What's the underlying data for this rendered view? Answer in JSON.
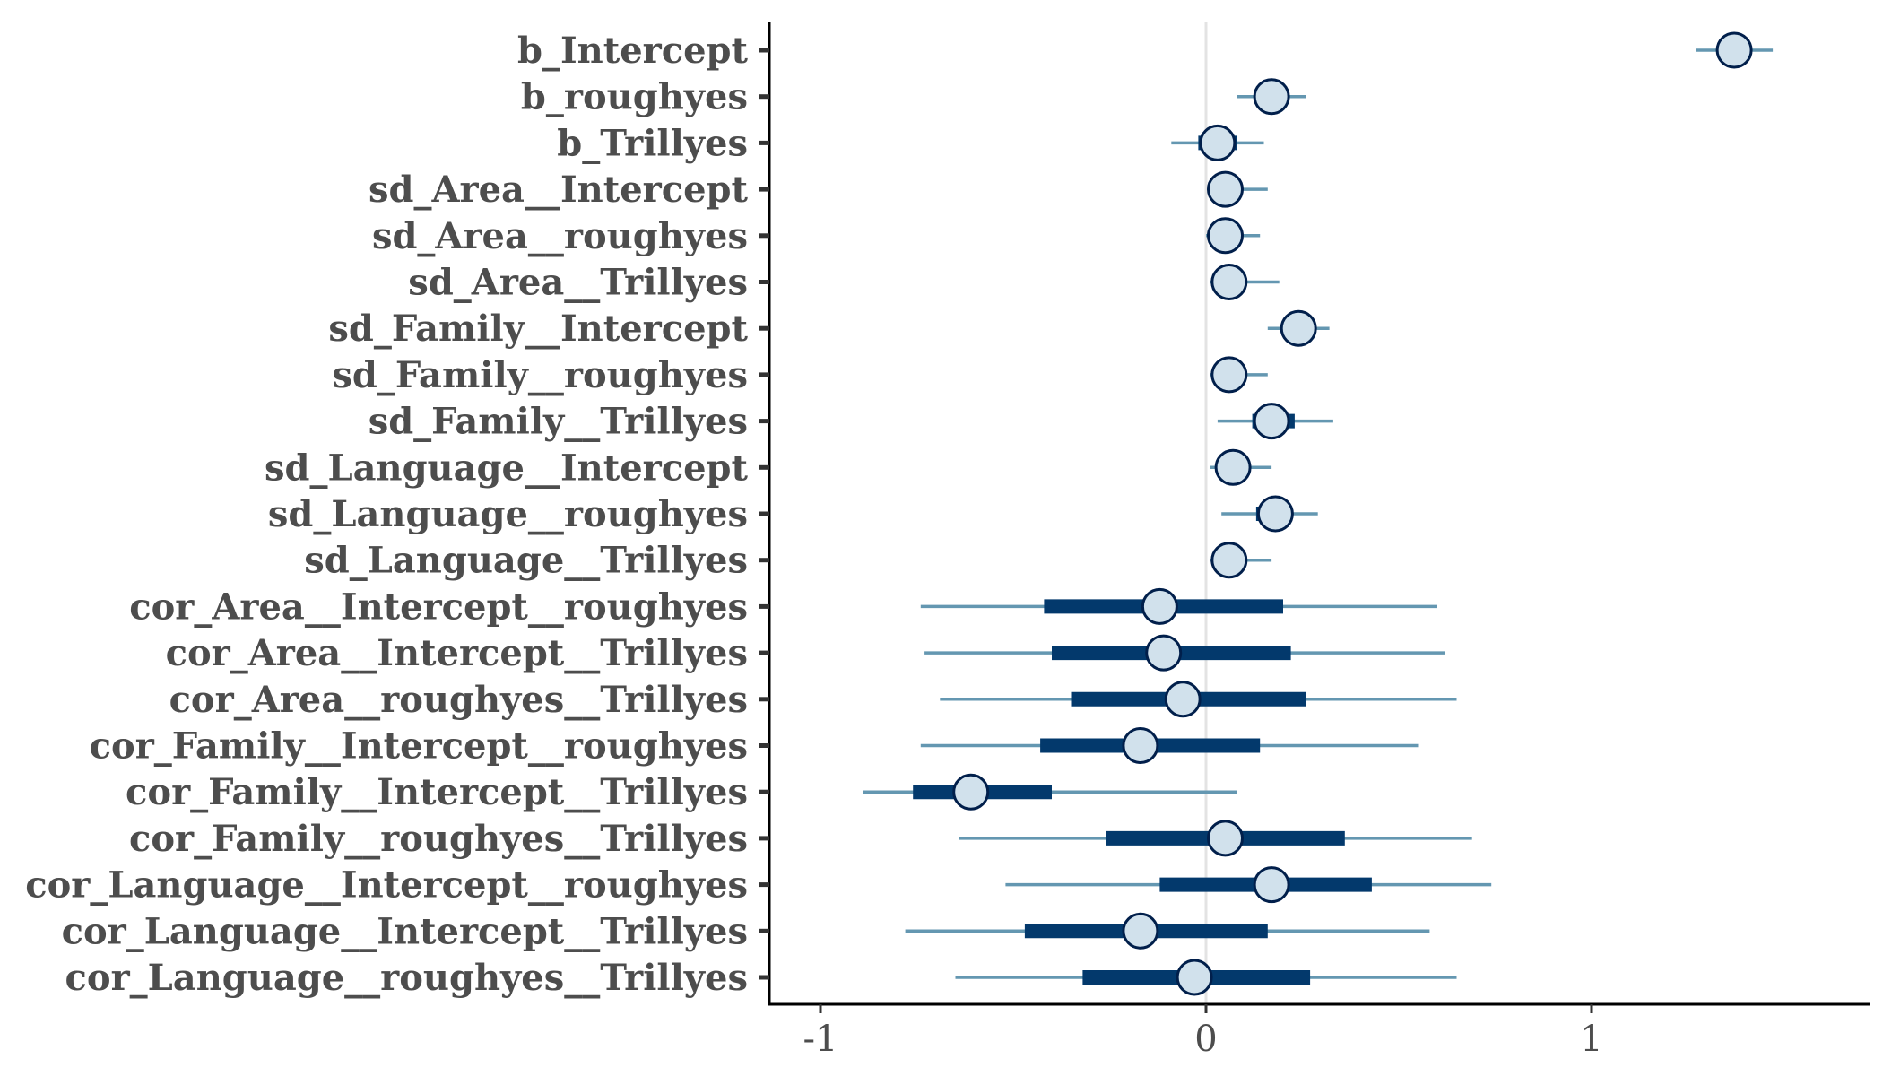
{
  "chart_data": {
    "type": "interval",
    "title": "",
    "xlabel": "",
    "ylabel": "",
    "xlim": [
      -1.14,
      1.72
    ],
    "x_ticks": [
      "-1",
      "0",
      "1"
    ],
    "x_tick_values": [
      -1,
      0,
      1
    ],
    "reference_line": 0,
    "grid": false,
    "legend": "none",
    "colors": {
      "outer_interval": "#6497b1",
      "inner_interval": "#03396c",
      "point_fill": "#d1e1ec",
      "point_stroke": "#011f4b",
      "zero_line": "#e3e3e3",
      "label_text": "#4d4d4d"
    },
    "parameters": [
      {
        "name": "b_Intercept",
        "estimate": 1.37,
        "inner": [
          1.33,
          1.4
        ],
        "outer": [
          1.27,
          1.47
        ]
      },
      {
        "name": "b_roughyes",
        "estimate": 0.17,
        "inner": [
          0.13,
          0.21
        ],
        "outer": [
          0.08,
          0.26
        ]
      },
      {
        "name": "b_Trillyes",
        "estimate": 0.03,
        "inner": [
          -0.02,
          0.08
        ],
        "outer": [
          -0.09,
          0.15
        ]
      },
      {
        "name": "sd_Area__Intercept",
        "estimate": 0.05,
        "inner": [
          0.03,
          0.08
        ],
        "outer": [
          0.01,
          0.16
        ]
      },
      {
        "name": "sd_Area__roughyes",
        "estimate": 0.05,
        "inner": [
          0.02,
          0.07
        ],
        "outer": [
          0.0,
          0.14
        ]
      },
      {
        "name": "sd_Area__Trillyes",
        "estimate": 0.06,
        "inner": [
          0.02,
          0.1
        ],
        "outer": [
          0.01,
          0.19
        ]
      },
      {
        "name": "sd_Family__Intercept",
        "estimate": 0.24,
        "inner": [
          0.2,
          0.28
        ],
        "outer": [
          0.16,
          0.32
        ]
      },
      {
        "name": "sd_Family__roughyes",
        "estimate": 0.06,
        "inner": [
          0.03,
          0.09
        ],
        "outer": [
          0.01,
          0.16
        ]
      },
      {
        "name": "sd_Family__Trillyes",
        "estimate": 0.17,
        "inner": [
          0.12,
          0.23
        ],
        "outer": [
          0.03,
          0.33
        ]
      },
      {
        "name": "sd_Language__Intercept",
        "estimate": 0.07,
        "inner": [
          0.04,
          0.11
        ],
        "outer": [
          0.01,
          0.17
        ]
      },
      {
        "name": "sd_Language__roughyes",
        "estimate": 0.18,
        "inner": [
          0.13,
          0.22
        ],
        "outer": [
          0.04,
          0.29
        ]
      },
      {
        "name": "sd_Language__Trillyes",
        "estimate": 0.06,
        "inner": [
          0.02,
          0.09
        ],
        "outer": [
          0.01,
          0.17
        ]
      },
      {
        "name": "cor_Area__Intercept__roughyes",
        "estimate": -0.12,
        "inner": [
          -0.42,
          0.2
        ],
        "outer": [
          -0.74,
          0.6
        ]
      },
      {
        "name": "cor_Area__Intercept__Trillyes",
        "estimate": -0.11,
        "inner": [
          -0.4,
          0.22
        ],
        "outer": [
          -0.73,
          0.62
        ]
      },
      {
        "name": "cor_Area__roughyes__Trillyes",
        "estimate": -0.06,
        "inner": [
          -0.35,
          0.26
        ],
        "outer": [
          -0.69,
          0.65
        ]
      },
      {
        "name": "cor_Family__Intercept__roughyes",
        "estimate": -0.17,
        "inner": [
          -0.43,
          0.14
        ],
        "outer": [
          -0.74,
          0.55
        ]
      },
      {
        "name": "cor_Family__Intercept__Trillyes",
        "estimate": -0.61,
        "inner": [
          -0.76,
          -0.4
        ],
        "outer": [
          -0.89,
          0.08
        ]
      },
      {
        "name": "cor_Family__roughyes__Trillyes",
        "estimate": 0.05,
        "inner": [
          -0.26,
          0.36
        ],
        "outer": [
          -0.64,
          0.69
        ]
      },
      {
        "name": "cor_Language__Intercept__roughyes",
        "estimate": 0.17,
        "inner": [
          -0.12,
          0.43
        ],
        "outer": [
          -0.52,
          0.74
        ]
      },
      {
        "name": "cor_Language__Intercept__Trillyes",
        "estimate": -0.17,
        "inner": [
          -0.47,
          0.16
        ],
        "outer": [
          -0.78,
          0.58
        ]
      },
      {
        "name": "cor_Language__roughyes__Trillyes",
        "estimate": -0.03,
        "inner": [
          -0.32,
          0.27
        ],
        "outer": [
          -0.65,
          0.65
        ]
      }
    ]
  }
}
